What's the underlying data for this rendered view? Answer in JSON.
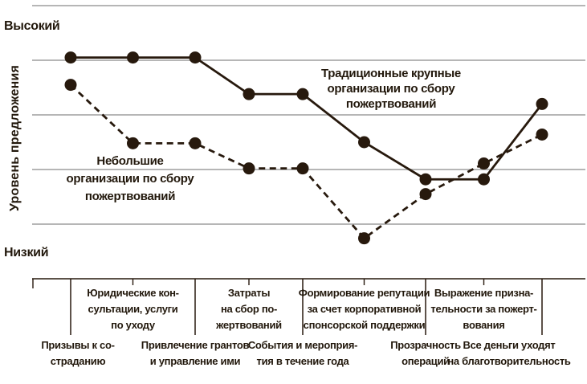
{
  "chart_data": {
    "type": "line",
    "title": "",
    "y_axis": {
      "title": "Уровень предложения",
      "high_label": "Высокий",
      "low_label": "Низкий",
      "ylim": [
        0,
        5
      ],
      "gridlines": [
        1,
        2,
        3,
        4,
        5
      ]
    },
    "grid": "horizontal",
    "legend_position": "inline-annotations",
    "categories": [
      "Призывы к состраданию",
      "Юридические консультации, услуги по уходу",
      "Привлечение грантов и управление ими",
      "Затраты на сбор пожертвований",
      "События и мероприятия в течение года",
      "Формирование репутации за счет корпоративной спонсорской поддержки",
      "Прозрачность операций",
      "Выражение признательности за пожертвования",
      "Все деньги уходят на благотворительность"
    ],
    "series": [
      {
        "name": "Традиционные крупные организации по сбору пожертвований",
        "style": "solid",
        "values": [
          4.05,
          4.05,
          4.05,
          3.38,
          3.38,
          2.5,
          1.82,
          1.82,
          3.2
        ]
      },
      {
        "name": "Небольшие организации по сбору пожертвований",
        "style": "dashed",
        "values": [
          3.55,
          2.48,
          2.48,
          2.02,
          2.02,
          0.74,
          1.55,
          2.11,
          2.64
        ]
      }
    ]
  },
  "annotations": {
    "solid_label": "Традиционные крупные\nорганизации по сбору\nпожертвований",
    "dashed_label": "Небольшие\nорганизации по сбору\nпожертвований"
  },
  "x_axis_display": {
    "labels": [
      {
        "text": "Призывы к со-\nстраданию",
        "row": 2
      },
      {
        "text": "Юридические кон-\nсультации, услуги\nпо уходу",
        "row": 1
      },
      {
        "text": "Привлечение грантов\nи управление ими",
        "row": 2
      },
      {
        "text": "Затраты\nна сбор по-\nжертвований",
        "row": 1
      },
      {
        "text": "События и мероприя-\nтия в течение года",
        "row": 2
      },
      {
        "text": "Формирование репутации\nза счет корпоративной\nспонсорской поддержки",
        "row": 1
      },
      {
        "text": "Прозрачность\nопераций",
        "row": 2
      },
      {
        "text": "Выражение призна-\nтельности за пожерт-\nвования",
        "row": 1
      },
      {
        "text": "Все деньги уходят\nна благотворительность",
        "row": 2
      }
    ]
  },
  "colors": {
    "ink": "#27190d",
    "grid": "#acacac",
    "background": "#ffffff"
  }
}
